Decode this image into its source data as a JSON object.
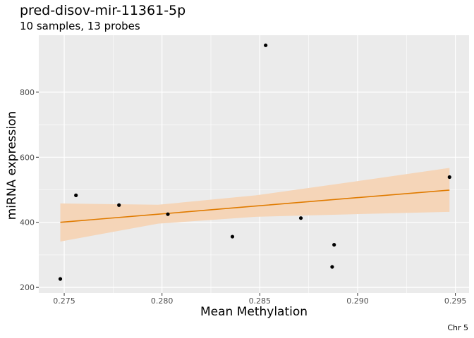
{
  "chart_data": {
    "type": "scatter",
    "title": "pred-disov-mir-11361-5p",
    "subtitle": "10 samples, 13 probes",
    "xlabel": "Mean Methylation",
    "ylabel": "miRNA expression",
    "caption": "Chr 5",
    "xlim": [
      0.2737,
      0.2957
    ],
    "ylim": [
      183,
      975
    ],
    "x_ticks": [
      0.275,
      0.28,
      0.285,
      0.29,
      0.295
    ],
    "x_tick_labels": [
      "0.275",
      "0.280",
      "0.285",
      "0.290",
      "0.295"
    ],
    "y_ticks": [
      200,
      400,
      600,
      800
    ],
    "y_tick_labels": [
      "200",
      "400",
      "600",
      "800"
    ],
    "points": [
      {
        "x": 0.2748,
        "y": 226
      },
      {
        "x": 0.2756,
        "y": 483
      },
      {
        "x": 0.2778,
        "y": 453
      },
      {
        "x": 0.2803,
        "y": 425
      },
      {
        "x": 0.2836,
        "y": 356
      },
      {
        "x": 0.2853,
        "y": 944
      },
      {
        "x": 0.2871,
        "y": 413
      },
      {
        "x": 0.2887,
        "y": 263
      },
      {
        "x": 0.2888,
        "y": 331
      },
      {
        "x": 0.2947,
        "y": 539
      }
    ],
    "fit": {
      "x": [
        0.2748,
        0.2798,
        0.2848,
        0.2898,
        0.2947
      ],
      "y": [
        400,
        425,
        450,
        475,
        499
      ],
      "lower": [
        341,
        396,
        417,
        425,
        432
      ],
      "upper": [
        458,
        454,
        483,
        525,
        567
      ]
    },
    "colors": {
      "panel": "#ebebeb",
      "grid": "#ffffff",
      "points": "#000000",
      "fit_line": "#e07b00",
      "ribbon": "#f5d5b8"
    },
    "grid": true,
    "legend": "none"
  }
}
